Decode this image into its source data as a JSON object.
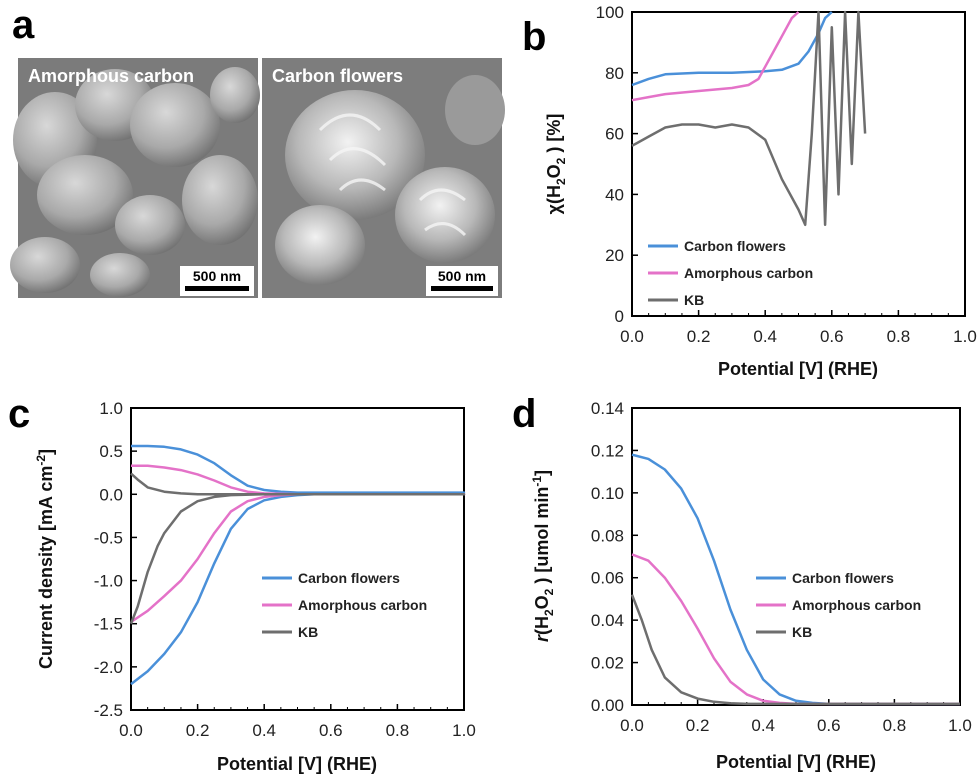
{
  "panel_labels": [
    "a",
    "b",
    "c",
    "d"
  ],
  "sem_images": [
    {
      "label": "Amorphous carbon",
      "scale_bar": "500 nm"
    },
    {
      "label": "Carbon flowers",
      "scale_bar": "500 nm"
    }
  ],
  "colors": {
    "carbon_flowers": "#4a90d9",
    "amorphous_carbon": "#e472c8",
    "kb": "#6e6e6e"
  },
  "chart_data": [
    {
      "panel": "b",
      "type": "line",
      "xlabel": "Potential [V] (RHE)",
      "ylabel_parts": [
        "χ(H",
        "2",
        "O",
        "2",
        " ) [%]"
      ],
      "xlim": [
        0,
        1.0
      ],
      "ylim": [
        0,
        100
      ],
      "xticks": [
        "0.0",
        "0.2",
        "0.4",
        "0.6",
        "0.8",
        "1.0"
      ],
      "yticks": [
        "0",
        "20",
        "40",
        "60",
        "80",
        "100"
      ],
      "legend": [
        "Carbon flowers",
        "Amorphous carbon",
        "KB"
      ],
      "series": [
        {
          "name": "Carbon flowers",
          "x": [
            0.0,
            0.05,
            0.1,
            0.2,
            0.3,
            0.4,
            0.45,
            0.5,
            0.53,
            0.56,
            0.58,
            0.6
          ],
          "y": [
            76,
            78,
            79.5,
            80,
            80,
            80.5,
            81,
            83,
            87,
            93,
            98,
            100
          ]
        },
        {
          "name": "Amorphous carbon",
          "x": [
            0.0,
            0.05,
            0.1,
            0.2,
            0.3,
            0.35,
            0.38,
            0.4,
            0.43,
            0.46,
            0.48,
            0.5
          ],
          "y": [
            71,
            72,
            73,
            74,
            75,
            76,
            78,
            82,
            88,
            94,
            98,
            100
          ]
        },
        {
          "name": "KB",
          "x": [
            0.0,
            0.05,
            0.1,
            0.15,
            0.2,
            0.25,
            0.3,
            0.35,
            0.4,
            0.45,
            0.5,
            0.52,
            0.54,
            0.56,
            0.58,
            0.6,
            0.62,
            0.64,
            0.66,
            0.68,
            0.7
          ],
          "y": [
            56,
            59,
            62,
            63,
            63,
            62,
            63,
            62,
            58,
            45,
            35,
            30,
            60,
            100,
            30,
            95,
            40,
            100,
            50,
            100,
            60
          ]
        }
      ]
    },
    {
      "panel": "c",
      "type": "line",
      "xlabel": "Potential [V] (RHE)",
      "ylabel_parts": [
        "Current density [mA cm",
        "-2",
        "]"
      ],
      "xlim": [
        0,
        1.0
      ],
      "ylim": [
        -2.5,
        1.0
      ],
      "xticks": [
        "0.0",
        "0.2",
        "0.4",
        "0.6",
        "0.8",
        "1.0"
      ],
      "yticks": [
        "-2.5",
        "-2.0",
        "-1.5",
        "-1.0",
        "-0.5",
        "0.0",
        "0.5",
        "1.0"
      ],
      "legend": [
        "Carbon flowers",
        "Amorphous carbon",
        "KB"
      ],
      "series": [
        {
          "name": "Carbon flowers",
          "x": [
            0.0,
            0.05,
            0.1,
            0.15,
            0.2,
            0.25,
            0.3,
            0.35,
            0.4,
            0.45,
            0.5,
            0.55,
            0.6,
            0.65,
            0.7,
            0.8,
            0.9,
            1.0,
            0.9,
            0.8,
            0.7,
            0.6,
            0.55,
            0.5,
            0.45,
            0.4,
            0.35,
            0.3,
            0.25,
            0.2,
            0.15,
            0.1,
            0.05,
            0.0
          ],
          "y": [
            -2.2,
            -2.05,
            -1.85,
            -1.6,
            -1.25,
            -0.8,
            -0.4,
            -0.17,
            -0.07,
            -0.03,
            -0.01,
            0.0,
            0.0,
            0.0,
            0.0,
            0.0,
            0.01,
            0.02,
            0.02,
            0.02,
            0.02,
            0.02,
            0.02,
            0.02,
            0.03,
            0.05,
            0.1,
            0.22,
            0.36,
            0.46,
            0.52,
            0.55,
            0.56,
            0.56
          ]
        },
        {
          "name": "Amorphous carbon",
          "x": [
            0.0,
            0.05,
            0.1,
            0.15,
            0.2,
            0.25,
            0.3,
            0.35,
            0.4,
            0.45,
            0.5,
            0.6,
            0.7,
            0.8,
            1.0,
            0.8,
            0.6,
            0.5,
            0.4,
            0.35,
            0.3,
            0.25,
            0.2,
            0.15,
            0.1,
            0.05,
            0.0
          ],
          "y": [
            -1.48,
            -1.35,
            -1.18,
            -1.0,
            -0.75,
            -0.45,
            -0.2,
            -0.08,
            -0.03,
            -0.01,
            0.0,
            0.0,
            0.0,
            0.0,
            0.0,
            0.0,
            0.0,
            0.0,
            0.01,
            0.03,
            0.08,
            0.16,
            0.23,
            0.28,
            0.31,
            0.33,
            0.33
          ]
        },
        {
          "name": "KB",
          "x": [
            0.0,
            0.02,
            0.05,
            0.08,
            0.1,
            0.15,
            0.2,
            0.25,
            0.3,
            0.4,
            0.5,
            0.6,
            0.8,
            1.0,
            0.8,
            0.6,
            0.4,
            0.3,
            0.2,
            0.15,
            0.1,
            0.05,
            0.02,
            0.0
          ],
          "y": [
            -1.5,
            -1.3,
            -0.9,
            -0.6,
            -0.45,
            -0.2,
            -0.08,
            -0.03,
            -0.01,
            0.0,
            0.0,
            0.0,
            0.0,
            0.0,
            0.0,
            0.0,
            0.0,
            0.0,
            0.0,
            0.01,
            0.03,
            0.08,
            0.17,
            0.24
          ]
        }
      ]
    },
    {
      "panel": "d",
      "type": "line",
      "xlabel": "Potential [V] (RHE)",
      "ylabel_parts": [
        "r",
        "(H",
        "2",
        "O",
        "2",
        " ) [umol min",
        "-1",
        "]"
      ],
      "xlim": [
        0,
        1.0
      ],
      "ylim": [
        0,
        0.14
      ],
      "xticks": [
        "0.0",
        "0.2",
        "0.4",
        "0.6",
        "0.8",
        "1.0"
      ],
      "yticks": [
        "0.00",
        "0.02",
        "0.04",
        "0.06",
        "0.08",
        "0.10",
        "0.12",
        "0.14"
      ],
      "legend": [
        "Carbon flowers",
        "Amorphous carbon",
        "KB"
      ],
      "series": [
        {
          "name": "Carbon flowers",
          "x": [
            0.0,
            0.05,
            0.1,
            0.15,
            0.2,
            0.25,
            0.3,
            0.35,
            0.4,
            0.45,
            0.5,
            0.55,
            0.6,
            0.7,
            0.8,
            1.0
          ],
          "y": [
            0.118,
            0.116,
            0.111,
            0.102,
            0.088,
            0.068,
            0.045,
            0.026,
            0.012,
            0.005,
            0.002,
            0.001,
            0.0005,
            0.0005,
            0.0005,
            0.0005
          ]
        },
        {
          "name": "Amorphous carbon",
          "x": [
            0.0,
            0.05,
            0.1,
            0.15,
            0.2,
            0.25,
            0.3,
            0.35,
            0.4,
            0.45,
            0.5,
            0.6,
            0.8,
            1.0
          ],
          "y": [
            0.071,
            0.068,
            0.06,
            0.049,
            0.036,
            0.022,
            0.011,
            0.005,
            0.002,
            0.001,
            0.0005,
            0.0005,
            0.0005,
            0.0005
          ]
        },
        {
          "name": "KB",
          "x": [
            0.0,
            0.03,
            0.06,
            0.1,
            0.15,
            0.2,
            0.25,
            0.3,
            0.35,
            0.4,
            0.5,
            0.6,
            0.8,
            1.0
          ],
          "y": [
            0.052,
            0.04,
            0.026,
            0.013,
            0.006,
            0.003,
            0.0015,
            0.0008,
            0.0005,
            0.0005,
            0.0005,
            0.0005,
            0.0005,
            0.0005
          ]
        }
      ]
    }
  ]
}
